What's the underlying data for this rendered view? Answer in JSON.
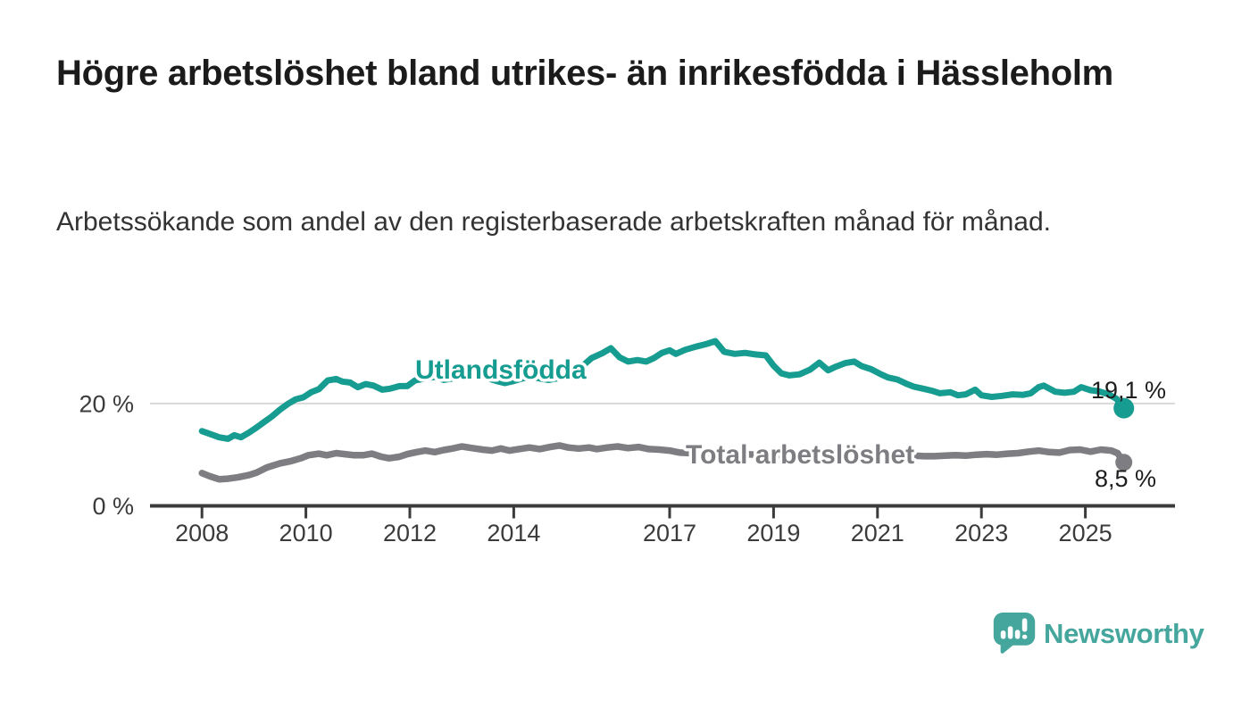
{
  "chart_data": {
    "type": "line",
    "title": "Högre arbetslöshet bland utrikes- än inrikesfödda i Hässleholm",
    "subtitle": "Arbetssökande som andel av den registerbaserade arbetskraften månad för månad.",
    "unit": "%",
    "legend_position": "inline-labels-on-lines",
    "grid": "horizontal-20-only",
    "x_axis": {
      "ticks": [
        2008,
        2010,
        2012,
        2014,
        2017,
        2019,
        2021,
        2023,
        2025
      ],
      "range": [
        2007,
        2026.7
      ]
    },
    "y_axis": {
      "ticks": [
        {
          "value": 0,
          "label": "0 %"
        },
        {
          "value": 20,
          "label": "20 %"
        }
      ],
      "range": [
        0,
        34
      ],
      "gridlines": [
        20
      ]
    },
    "series": [
      {
        "id": "utlandsfodda",
        "name": "Utlandsfödda",
        "color": "#169c90",
        "end_label": "19,1 %",
        "end_value": 19.1,
        "points": [
          [
            2008.0,
            14.6
          ],
          [
            2008.17,
            14.0
          ],
          [
            2008.33,
            13.4
          ],
          [
            2008.5,
            13.1
          ],
          [
            2008.62,
            13.8
          ],
          [
            2008.75,
            13.4
          ],
          [
            2008.9,
            14.3
          ],
          [
            2009.05,
            15.3
          ],
          [
            2009.2,
            16.4
          ],
          [
            2009.35,
            17.5
          ],
          [
            2009.5,
            18.8
          ],
          [
            2009.65,
            19.9
          ],
          [
            2009.8,
            20.8
          ],
          [
            2009.95,
            21.2
          ],
          [
            2010.1,
            22.2
          ],
          [
            2010.25,
            22.8
          ],
          [
            2010.42,
            24.5
          ],
          [
            2010.58,
            24.8
          ],
          [
            2010.7,
            24.3
          ],
          [
            2010.85,
            24.1
          ],
          [
            2011.0,
            23.2
          ],
          [
            2011.15,
            23.8
          ],
          [
            2011.3,
            23.5
          ],
          [
            2011.47,
            22.7
          ],
          [
            2011.62,
            22.9
          ],
          [
            2011.8,
            23.4
          ],
          [
            2011.95,
            23.4
          ],
          [
            2012.1,
            24.5
          ],
          [
            2012.3,
            24.9
          ],
          [
            2012.48,
            25.2
          ],
          [
            2012.65,
            24.6
          ],
          [
            2012.82,
            24.9
          ],
          [
            2013.0,
            25.3
          ],
          [
            2013.17,
            25.1
          ],
          [
            2013.33,
            25.5
          ],
          [
            2013.5,
            24.9
          ],
          [
            2013.67,
            24.4
          ],
          [
            2013.83,
            24.0
          ],
          [
            2014.0,
            24.4
          ],
          [
            2014.17,
            24.9
          ],
          [
            2014.33,
            25.2
          ],
          [
            2014.5,
            24.9
          ],
          [
            2014.67,
            24.6
          ],
          [
            2014.83,
            24.9
          ],
          [
            2015.0,
            25.3
          ],
          [
            2015.17,
            26.1
          ],
          [
            2015.33,
            27.4
          ],
          [
            2015.5,
            28.9
          ],
          [
            2015.7,
            29.8
          ],
          [
            2015.87,
            30.8
          ],
          [
            2016.04,
            29.0
          ],
          [
            2016.2,
            28.2
          ],
          [
            2016.38,
            28.5
          ],
          [
            2016.55,
            28.2
          ],
          [
            2016.7,
            28.9
          ],
          [
            2016.85,
            29.9
          ],
          [
            2017.0,
            30.4
          ],
          [
            2017.12,
            29.7
          ],
          [
            2017.3,
            30.5
          ],
          [
            2017.5,
            31.1
          ],
          [
            2017.7,
            31.6
          ],
          [
            2017.88,
            32.2
          ],
          [
            2018.05,
            30.1
          ],
          [
            2018.25,
            29.7
          ],
          [
            2018.45,
            29.9
          ],
          [
            2018.65,
            29.6
          ],
          [
            2018.85,
            29.4
          ],
          [
            2019.0,
            27.4
          ],
          [
            2019.15,
            25.9
          ],
          [
            2019.3,
            25.5
          ],
          [
            2019.5,
            25.7
          ],
          [
            2019.7,
            26.6
          ],
          [
            2019.88,
            28.0
          ],
          [
            2020.05,
            26.5
          ],
          [
            2020.2,
            27.2
          ],
          [
            2020.38,
            27.9
          ],
          [
            2020.55,
            28.2
          ],
          [
            2020.7,
            27.3
          ],
          [
            2020.88,
            26.7
          ],
          [
            2021.05,
            25.8
          ],
          [
            2021.2,
            25.1
          ],
          [
            2021.38,
            24.7
          ],
          [
            2021.55,
            23.9
          ],
          [
            2021.7,
            23.3
          ],
          [
            2021.88,
            22.9
          ],
          [
            2022.05,
            22.5
          ],
          [
            2022.2,
            22.0
          ],
          [
            2022.4,
            22.2
          ],
          [
            2022.55,
            21.6
          ],
          [
            2022.7,
            21.8
          ],
          [
            2022.88,
            22.7
          ],
          [
            2023.0,
            21.6
          ],
          [
            2023.2,
            21.3
          ],
          [
            2023.4,
            21.5
          ],
          [
            2023.6,
            21.8
          ],
          [
            2023.8,
            21.7
          ],
          [
            2023.95,
            22.0
          ],
          [
            2024.1,
            23.2
          ],
          [
            2024.2,
            23.5
          ],
          [
            2024.42,
            22.3
          ],
          [
            2024.6,
            22.1
          ],
          [
            2024.78,
            22.3
          ],
          [
            2024.92,
            23.2
          ],
          [
            2025.1,
            22.6
          ],
          [
            2025.25,
            22.4
          ],
          [
            2025.45,
            21.8
          ],
          [
            2025.6,
            20.9
          ],
          [
            2025.74,
            19.1
          ]
        ]
      },
      {
        "id": "total-arbetsloshet",
        "name": "Total arbetslöshet",
        "color": "#7e7e82",
        "end_label": "8,5 %",
        "end_value": 8.5,
        "points": [
          [
            2008.0,
            6.4
          ],
          [
            2008.15,
            5.8
          ],
          [
            2008.33,
            5.2
          ],
          [
            2008.5,
            5.3
          ],
          [
            2008.7,
            5.6
          ],
          [
            2008.9,
            6.0
          ],
          [
            2009.05,
            6.5
          ],
          [
            2009.25,
            7.5
          ],
          [
            2009.5,
            8.3
          ],
          [
            2009.7,
            8.7
          ],
          [
            2009.9,
            9.3
          ],
          [
            2010.05,
            9.9
          ],
          [
            2010.25,
            10.2
          ],
          [
            2010.4,
            9.9
          ],
          [
            2010.58,
            10.3
          ],
          [
            2010.75,
            10.1
          ],
          [
            2010.93,
            9.9
          ],
          [
            2011.1,
            9.9
          ],
          [
            2011.27,
            10.2
          ],
          [
            2011.45,
            9.6
          ],
          [
            2011.6,
            9.3
          ],
          [
            2011.8,
            9.6
          ],
          [
            2011.95,
            10.1
          ],
          [
            2012.13,
            10.5
          ],
          [
            2012.3,
            10.8
          ],
          [
            2012.48,
            10.5
          ],
          [
            2012.65,
            10.9
          ],
          [
            2012.82,
            11.2
          ],
          [
            2013.0,
            11.6
          ],
          [
            2013.2,
            11.3
          ],
          [
            2013.4,
            11.0
          ],
          [
            2013.58,
            10.8
          ],
          [
            2013.75,
            11.2
          ],
          [
            2013.92,
            10.8
          ],
          [
            2014.1,
            11.1
          ],
          [
            2014.3,
            11.4
          ],
          [
            2014.5,
            11.1
          ],
          [
            2014.7,
            11.5
          ],
          [
            2014.88,
            11.8
          ],
          [
            2015.05,
            11.4
          ],
          [
            2015.25,
            11.2
          ],
          [
            2015.45,
            11.4
          ],
          [
            2015.6,
            11.1
          ],
          [
            2015.8,
            11.4
          ],
          [
            2016.0,
            11.6
          ],
          [
            2016.2,
            11.3
          ],
          [
            2016.4,
            11.5
          ],
          [
            2016.6,
            11.1
          ],
          [
            2016.8,
            11.0
          ],
          [
            2017.0,
            10.8
          ],
          [
            2017.2,
            10.4
          ],
          [
            2017.4,
            10.3
          ],
          [
            2017.6,
            10.5
          ],
          [
            2017.8,
            10.2
          ],
          [
            2018.0,
            10.1
          ],
          [
            2018.25,
            10.0
          ],
          [
            2018.5,
            10.1
          ],
          [
            2018.75,
            9.9
          ],
          [
            2019.0,
            10.0
          ],
          [
            2019.25,
            9.8
          ],
          [
            2019.5,
            9.7
          ],
          [
            2019.75,
            9.9
          ],
          [
            2020.0,
            10.0
          ],
          [
            2020.3,
            10.7
          ],
          [
            2020.5,
            10.5
          ],
          [
            2020.7,
            10.4
          ],
          [
            2020.9,
            10.3
          ],
          [
            2021.1,
            10.1
          ],
          [
            2021.3,
            10.0
          ],
          [
            2021.5,
            9.9
          ],
          [
            2021.7,
            9.8
          ],
          [
            2021.9,
            9.7
          ],
          [
            2022.1,
            9.7
          ],
          [
            2022.3,
            9.8
          ],
          [
            2022.5,
            9.9
          ],
          [
            2022.7,
            9.8
          ],
          [
            2022.9,
            10.0
          ],
          [
            2023.1,
            10.1
          ],
          [
            2023.3,
            10.0
          ],
          [
            2023.5,
            10.2
          ],
          [
            2023.7,
            10.3
          ],
          [
            2023.91,
            10.6
          ],
          [
            2024.1,
            10.8
          ],
          [
            2024.3,
            10.5
          ],
          [
            2024.5,
            10.4
          ],
          [
            2024.7,
            10.9
          ],
          [
            2024.9,
            11.0
          ],
          [
            2025.1,
            10.6
          ],
          [
            2025.3,
            11.0
          ],
          [
            2025.5,
            10.8
          ],
          [
            2025.62,
            10.3
          ],
          [
            2025.74,
            8.5
          ]
        ]
      }
    ]
  },
  "footer": {
    "brand": "Newsworthy",
    "brand_color": "#45a69d",
    "logo_icon": "speech-bubble-bar-chart-icon"
  }
}
